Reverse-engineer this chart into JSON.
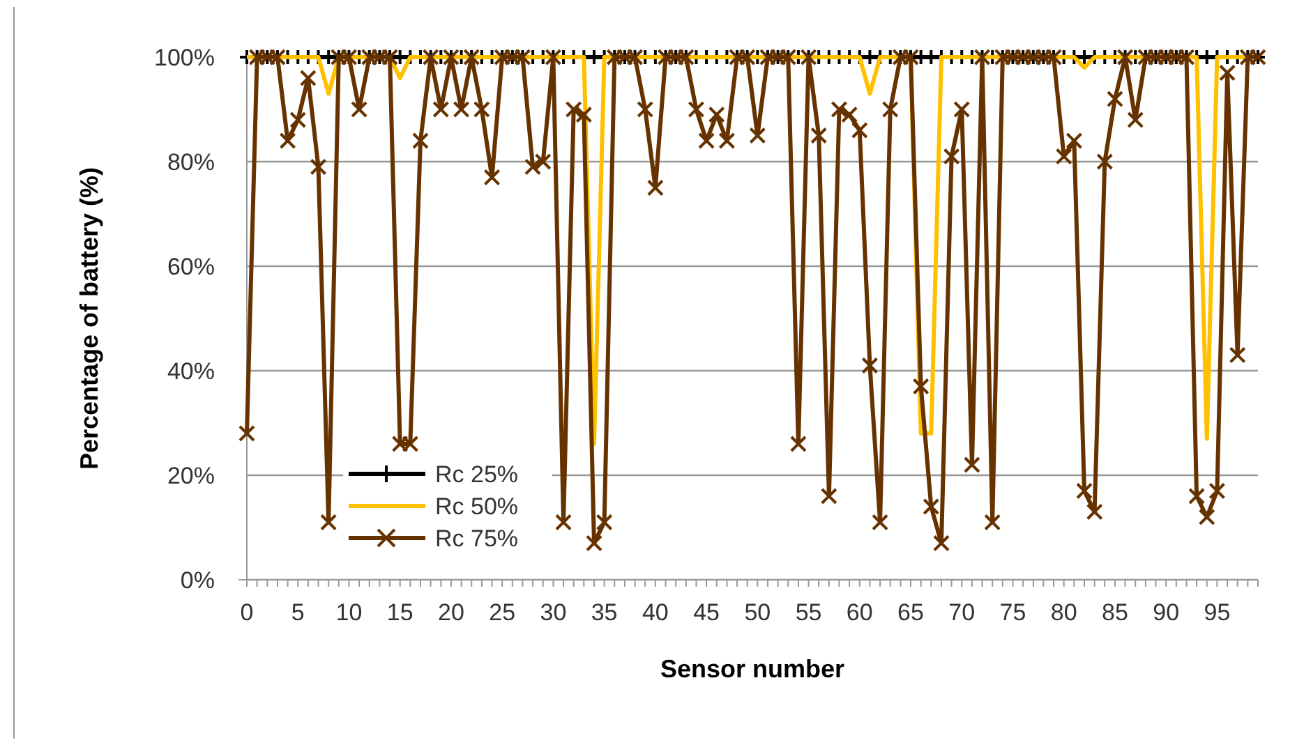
{
  "chart_data": {
    "type": "line",
    "xlabel": "Sensor number",
    "ylabel": "Percentage of battery (%)",
    "categories": [
      "0",
      null,
      null,
      null,
      null,
      "5",
      null,
      null,
      null,
      null,
      "10",
      null,
      null,
      null,
      null,
      "15",
      null,
      null,
      null,
      null,
      "20",
      null,
      null,
      null,
      null,
      "25",
      null,
      null,
      null,
      null,
      "30",
      null,
      null,
      null,
      null,
      "35",
      null,
      null,
      null,
      null,
      "40",
      null,
      null,
      null,
      null,
      "45",
      null,
      null,
      null,
      null,
      "50",
      null,
      null,
      null,
      null,
      "55",
      null,
      null,
      null,
      null,
      "60",
      null,
      null,
      null,
      null,
      "65",
      null,
      null,
      null,
      null,
      "70",
      null,
      null,
      null,
      null,
      "75",
      null,
      null,
      null,
      null,
      "80",
      null,
      null,
      null,
      null,
      "85",
      null,
      null,
      null,
      null,
      "90",
      null,
      null,
      null,
      null,
      "95",
      null,
      null,
      null,
      null
    ],
    "ylim": [
      0,
      100
    ],
    "yticks": [
      {
        "value": 0,
        "label": "0%"
      },
      {
        "value": 20,
        "label": "20%"
      },
      {
        "value": 40,
        "label": "40%"
      },
      {
        "value": 60,
        "label": "60%"
      },
      {
        "value": 80,
        "label": "80%"
      },
      {
        "value": 100,
        "label": "100%"
      }
    ],
    "grid": "y",
    "legend": "bottom left",
    "series": [
      {
        "name": "Rc 25%",
        "color": "#000000",
        "marker": "cross",
        "values": [
          100,
          100,
          100,
          100,
          100,
          100,
          100,
          100,
          100,
          100,
          100,
          100,
          100,
          100,
          100,
          100,
          100,
          100,
          100,
          100,
          100,
          100,
          100,
          100,
          100,
          100,
          100,
          100,
          100,
          100,
          100,
          100,
          100,
          100,
          100,
          100,
          100,
          100,
          100,
          100,
          100,
          100,
          100,
          100,
          100,
          100,
          100,
          100,
          100,
          100,
          100,
          100,
          100,
          100,
          100,
          100,
          100,
          100,
          100,
          100,
          100,
          100,
          100,
          100,
          100,
          100,
          100,
          100,
          100,
          100,
          100,
          100,
          100,
          100,
          100,
          100,
          100,
          100,
          100,
          100,
          100,
          100,
          100,
          100,
          100,
          100,
          100,
          100,
          100,
          100,
          100,
          100,
          100,
          100,
          100,
          100,
          100,
          100,
          100,
          100
        ]
      },
      {
        "name": "Rc 50%",
        "color": "#ffc000",
        "marker": "none",
        "values": [
          100,
          100,
          100,
          100,
          100,
          100,
          100,
          100,
          93,
          100,
          100,
          100,
          100,
          100,
          100,
          96,
          100,
          100,
          100,
          100,
          100,
          100,
          100,
          100,
          100,
          100,
          100,
          100,
          100,
          100,
          100,
          100,
          100,
          100,
          26,
          100,
          100,
          100,
          100,
          100,
          100,
          100,
          100,
          100,
          100,
          100,
          100,
          100,
          100,
          100,
          100,
          100,
          100,
          100,
          100,
          100,
          100,
          100,
          100,
          100,
          100,
          93,
          100,
          100,
          100,
          100,
          28,
          28,
          100,
          100,
          100,
          100,
          100,
          100,
          100,
          100,
          100,
          100,
          100,
          100,
          100,
          100,
          98,
          100,
          100,
          100,
          100,
          100,
          100,
          100,
          100,
          100,
          100,
          100,
          27,
          100,
          100,
          100,
          100,
          100
        ]
      },
      {
        "name": "Rc 75%",
        "color": "#663300",
        "marker": "x",
        "values": [
          28,
          100,
          100,
          100,
          84,
          88,
          96,
          79,
          11,
          100,
          100,
          90,
          100,
          100,
          100,
          26,
          26,
          84,
          100,
          90,
          100,
          90,
          100,
          90,
          77,
          100,
          100,
          100,
          79,
          80,
          100,
          11,
          90,
          89,
          7,
          11,
          100,
          100,
          100,
          90,
          75,
          100,
          100,
          100,
          90,
          84,
          89,
          84,
          100,
          100,
          85,
          100,
          100,
          100,
          26,
          100,
          85,
          16,
          90,
          89,
          86,
          41,
          11,
          90,
          100,
          100,
          37,
          14,
          7,
          81,
          90,
          22,
          100,
          11,
          100,
          100,
          100,
          100,
          100,
          100,
          81,
          84,
          17,
          13,
          80,
          92,
          100,
          88,
          100,
          100,
          100,
          100,
          100,
          16,
          12,
          17,
          97,
          43,
          100,
          100
        ]
      }
    ]
  }
}
